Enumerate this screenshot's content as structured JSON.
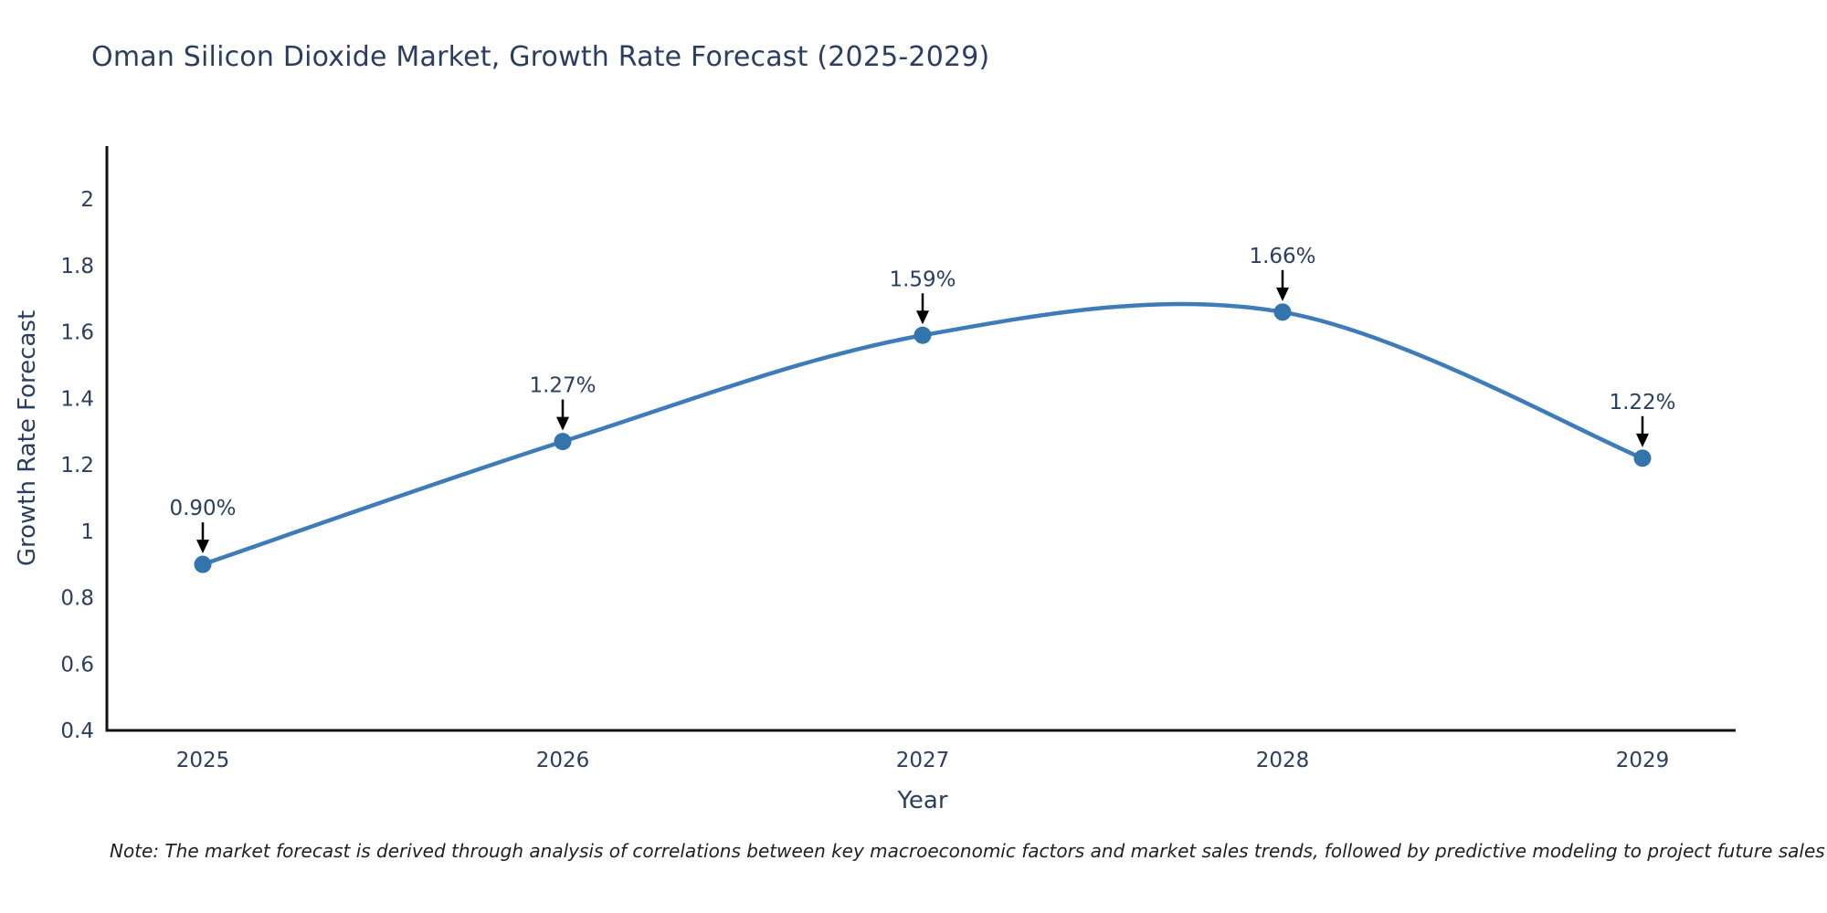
{
  "chart_data": {
    "type": "line",
    "title": "Oman Silicon Dioxide Market, Growth Rate Forecast (2025-2029)",
    "xlabel": "Year",
    "ylabel": "Growth Rate Forecast",
    "categories": [
      "2025",
      "2026",
      "2027",
      "2028",
      "2029"
    ],
    "values": [
      0.9,
      1.27,
      1.59,
      1.66,
      1.22
    ],
    "point_labels": [
      "0.90%",
      "1.27%",
      "1.59%",
      "1.66%",
      "1.22%"
    ],
    "yticks": [
      0.4,
      0.6,
      0.8,
      1,
      1.2,
      1.4,
      1.6,
      1.8,
      2
    ],
    "ytick_labels": [
      "0.4",
      "0.6",
      "0.8",
      "1",
      "1.2",
      "1.4",
      "1.6",
      "1.8",
      "2"
    ],
    "ylim": [
      0.4,
      2.16
    ],
    "grid": false,
    "legend": "none",
    "line_shape": "spline",
    "colors": {
      "line": "#3d7cb8",
      "marker": "#3474ad",
      "axis": "#111111",
      "text": "#2a3f5f",
      "arrow": "#000000"
    },
    "note": "Note: The market forecast is derived through analysis of correlations between key macroeconomic factors and market sales trends, followed by predictive modeling to project future sales"
  }
}
